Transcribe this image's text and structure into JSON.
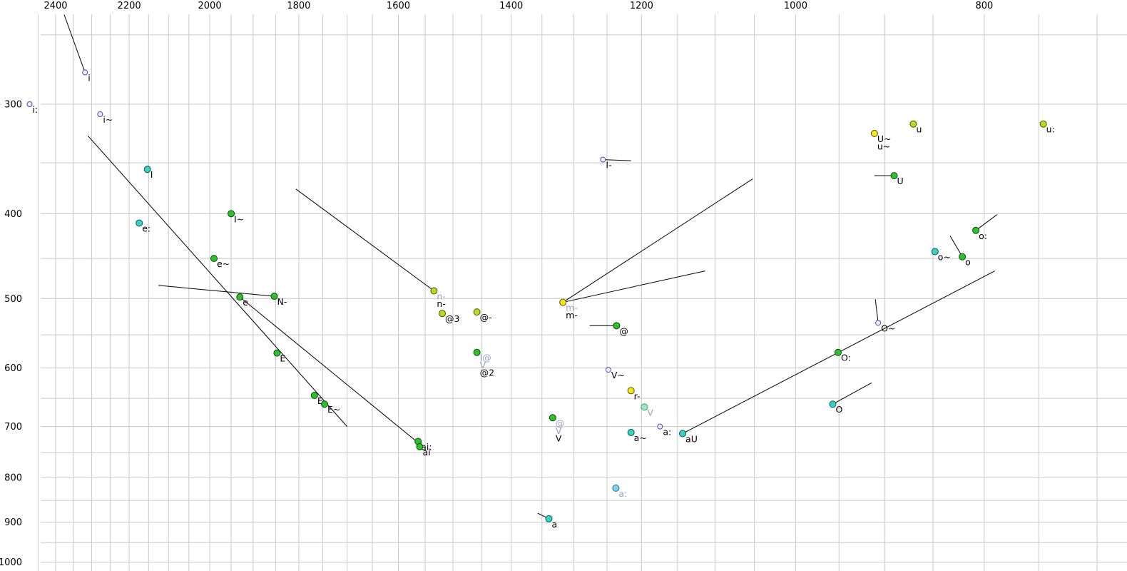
{
  "chart_data": {
    "type": "scatter",
    "description": "Vowel formant plot, F2 (Hz) across top axis reversed log scale, F1 (Hz) down left axis log scale",
    "x_axis": {
      "ticks": [
        2400,
        2200,
        2000,
        1800,
        1600,
        1400,
        1200,
        1000,
        800
      ],
      "unit": "Hz",
      "reversed": true,
      "scale": "log",
      "grid_step": 50
    },
    "y_axis": {
      "ticks": [
        300,
        400,
        500,
        600,
        700,
        800,
        900,
        1000
      ],
      "unit": "Hz",
      "scale": "log",
      "grid_step": 50
    },
    "grid": true,
    "points": [
      {
        "label": "i",
        "f2": 2318,
        "f1": 276,
        "c": "open"
      },
      {
        "label": "i:",
        "f2": 2475,
        "f1": 300,
        "c": "open"
      },
      {
        "label": "i~",
        "f2": 2277,
        "f1": 308,
        "c": "open"
      },
      {
        "label": "I",
        "f2": 2153,
        "f1": 356,
        "c": "cyan"
      },
      {
        "label": "e:",
        "f2": 2174,
        "f1": 410,
        "c": "cyan"
      },
      {
        "label": "I~",
        "f2": 1950,
        "f1": 400,
        "c": "green"
      },
      {
        "label": "e~",
        "f2": 1990,
        "f1": 450,
        "c": "green"
      },
      {
        "label": "e",
        "f2": 1930,
        "f1": 498,
        "c": "green"
      },
      {
        "label": "N-",
        "f2": 1853,
        "f1": 497,
        "c": "green"
      },
      {
        "label": "E",
        "f2": 1847,
        "f1": 577,
        "c": "green"
      },
      {
        "label": "E-",
        "f2": 1767,
        "f1": 645,
        "c": "green"
      },
      {
        "label": "E~",
        "f2": 1746,
        "f1": 660,
        "c": "green"
      },
      {
        "label": "ai:",
        "f2": 1563,
        "f1": 728,
        "c": "green"
      },
      {
        "label": "ai",
        "f2": 1560,
        "f1": 738,
        "c": "green"
      },
      {
        "label": "n-",
        "f2": 1534,
        "f1": 490,
        "c": "yellowgreen",
        "grey": [
          "n-"
        ]
      },
      {
        "label": "@3",
        "f2": 1519,
        "f1": 520,
        "c": "yellowgreen"
      },
      {
        "label": "@-",
        "f2": 1458,
        "f1": 518,
        "c": "yellowgreen"
      },
      {
        "label": "@2",
        "f2": 1458,
        "f1": 576,
        "c": "green",
        "grey": [
          "I@",
          "V"
        ]
      },
      {
        "label": "m-",
        "f2": 1317,
        "f1": 505,
        "c": "yellow",
        "grey": [
          "m-"
        ]
      },
      {
        "label": "I-",
        "f2": 1256,
        "f1": 347,
        "c": "open"
      },
      {
        "label": "@",
        "f2": 1236,
        "f1": 537,
        "c": "green"
      },
      {
        "label": "V~",
        "f2": 1248,
        "f1": 603,
        "c": "open"
      },
      {
        "label": "r-",
        "f2": 1215,
        "f1": 637,
        "c": "yellow"
      },
      {
        "label": "V",
        "f2": 1196,
        "f1": 665,
        "c": "palegreen",
        "label_grey": true
      },
      {
        "label": "a:",
        "f2": 1174,
        "f1": 700,
        "c": "open"
      },
      {
        "label": "a~",
        "f2": 1215,
        "f1": 711,
        "c": "cyan"
      },
      {
        "label": "aU",
        "f2": 1143,
        "f1": 713,
        "c": "cyan"
      },
      {
        "label": "V",
        "f2": 1333,
        "f1": 684,
        "c": "green",
        "grey": [
          "@",
          "V"
        ]
      },
      {
        "label": "a:",
        "f2": 1237,
        "f1": 823,
        "c": "lightblue",
        "label_grey": true
      },
      {
        "label": "a",
        "f2": 1339,
        "f1": 892,
        "c": "cyan"
      },
      {
        "label": "O:",
        "f2": 951,
        "f1": 576,
        "c": "green"
      },
      {
        "label": "O~",
        "f2": 907,
        "f1": 533,
        "c": "open"
      },
      {
        "label": "O",
        "f2": 957,
        "f1": 660,
        "c": "cyan"
      },
      {
        "label": "o~",
        "f2": 848,
        "f1": 442,
        "c": "cyan"
      },
      {
        "label": "o",
        "f2": 821,
        "f1": 448,
        "c": "green"
      },
      {
        "label": "o:",
        "f2": 808,
        "f1": 418,
        "c": "green"
      },
      {
        "label": "U",
        "f2": 890,
        "f1": 362,
        "c": "green"
      },
      {
        "label": "U~",
        "f2": 911,
        "f1": 324,
        "c": "yellow",
        "sub": [
          "u~"
        ]
      },
      {
        "label": "u",
        "f2": 870,
        "f1": 316,
        "c": "yellowgreen"
      },
      {
        "label": "u:",
        "f2": 746,
        "f1": 316,
        "c": "yellowgreen"
      }
    ],
    "lines": [
      [
        2376,
        237,
        2318,
        276
      ],
      [
        2310,
        326,
        1700,
        700
      ],
      [
        2125,
        483,
        1853,
        497
      ],
      [
        1930,
        498,
        1560,
        733
      ],
      [
        1806,
        375,
        1534,
        490
      ],
      [
        1317,
        505,
        1052,
        365
      ],
      [
        1317,
        505,
        1113,
        465
      ],
      [
        1256,
        347,
        1215,
        348
      ],
      [
        1276,
        537,
        1236,
        537
      ],
      [
        1143,
        713,
        790,
        465
      ],
      [
        910,
        501,
        907,
        533
      ],
      [
        914,
        624,
        957,
        660
      ],
      [
        833,
        424,
        821,
        448
      ],
      [
        788,
        401,
        808,
        418
      ],
      [
        911,
        362,
        890,
        362
      ],
      [
        1357,
        879,
        1339,
        892
      ]
    ]
  },
  "palette": {
    "green": {
      "fill": "#2fbf2f",
      "stroke": "#074d07",
      "r": 4.5
    },
    "yellowgreen": {
      "fill": "#b9d926",
      "stroke": "#4d5500",
      "r": 4.5
    },
    "yellow": {
      "fill": "#f2e720",
      "stroke": "#555500",
      "r": 4.5
    },
    "cyan": {
      "fill": "#3ccfc6",
      "stroke": "#065a55",
      "r": 4.5
    },
    "lightblue": {
      "fill": "#7fd4ee",
      "stroke": "#336688",
      "r": 4.5
    },
    "palegreen": {
      "fill": "#9fe8c0",
      "stroke": "#449977",
      "r": 4.5
    },
    "open": {
      "fill": "#eef0ff",
      "stroke": "#4a4aaa",
      "r": 3.5
    }
  },
  "colors": {
    "grid": "#c9c9c9",
    "line": "#000000",
    "text": "#000000",
    "grey_label": "#9aa0c8",
    "background": "#ffffff"
  }
}
